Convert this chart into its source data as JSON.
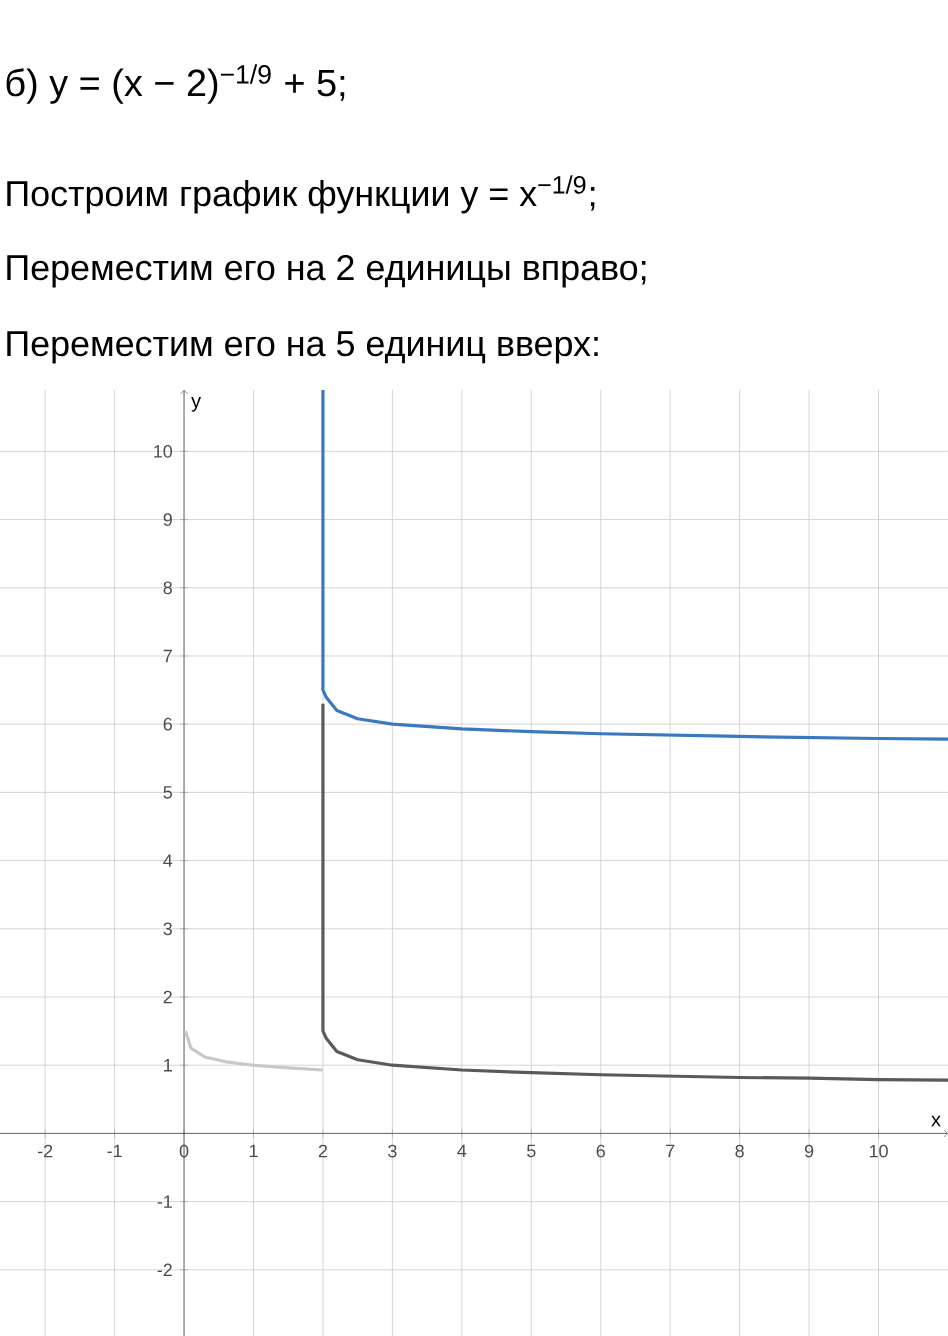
{
  "chart_data": {
    "type": "line",
    "title": "б) y = (x − 2)$^{−1/9}$ + 5;",
    "annotations": [
      "Построим график функции y = x$^{−1/9}$;",
      "Переместим его на 2 единицы вправо;",
      "Переместим его на 5 единиц вверх:"
    ],
    "xlabel": "x",
    "ylabel": "y",
    "xlim": [
      -2.65,
      11
    ],
    "ylim": [
      -2.97,
      10.9
    ],
    "xticks": [
      -2,
      -1,
      0,
      1,
      2,
      3,
      4,
      5,
      6,
      7,
      8,
      9,
      10
    ],
    "yticks": [
      -2,
      -1,
      {
        "value": 0,
        "label": null
      },
      1,
      2,
      3,
      4,
      5,
      6,
      7,
      8,
      9,
      10
    ],
    "grid": true,
    "series": [
      {
        "color": "#c8c8c8",
        "x": [
          0.02,
          0.1,
          0.3,
          0.6,
          1,
          1.5,
          2
        ],
        "values": [
          1.5,
          1.25,
          1.12,
          1.05,
          1,
          0.96,
          0.93
        ]
      },
      {
        "color": "#5a5a5a",
        "x": [
          2,
          2,
          2.05,
          2.2,
          2.5,
          3,
          4,
          5,
          6,
          7,
          8,
          9,
          10,
          11
        ],
        "values": [
          6.3,
          1.5,
          1.39,
          1.2,
          1.08,
          1,
          0.93,
          0.89,
          0.86,
          0.84,
          0.82,
          0.81,
          0.79,
          0.78
        ]
      },
      {
        "color": "#3a78c0",
        "x": [
          2,
          2,
          2.05,
          2.2,
          2.5,
          3,
          4,
          5,
          6,
          8,
          10,
          11
        ],
        "values": [
          10.9,
          6.5,
          6.39,
          6.2,
          6.08,
          6,
          5.93,
          5.89,
          5.86,
          5.82,
          5.79,
          5.78
        ]
      }
    ]
  }
}
